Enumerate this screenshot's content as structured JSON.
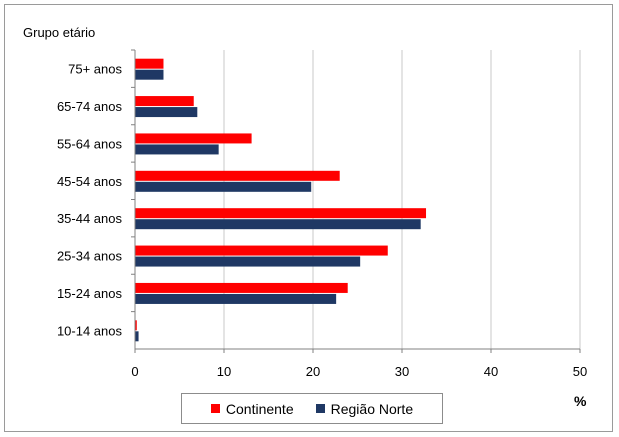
{
  "chart_data": {
    "type": "bar",
    "orientation": "horizontal",
    "ylabel": "Grupo etário",
    "xlabel": "%",
    "categories": [
      "75+ anos",
      "65-74 anos",
      "55-64 anos",
      "45-54 anos",
      "35-44 anos",
      "25-34 anos",
      "15-24 anos",
      "10-14 anos"
    ],
    "series": [
      {
        "name": "Continente",
        "color": "#ff0000",
        "values": [
          3.2,
          6.6,
          13.1,
          23.0,
          32.7,
          28.4,
          23.9,
          0.2
        ]
      },
      {
        "name": "Região Norte",
        "color": "#1f3864",
        "values": [
          3.2,
          7.0,
          9.4,
          19.8,
          32.1,
          25.3,
          22.6,
          0.4
        ]
      }
    ],
    "xlim": [
      0,
      50
    ],
    "xticks": [
      "0",
      "10",
      "20",
      "30",
      "40",
      "50"
    ],
    "grid": true,
    "legend_position": "bottom"
  }
}
